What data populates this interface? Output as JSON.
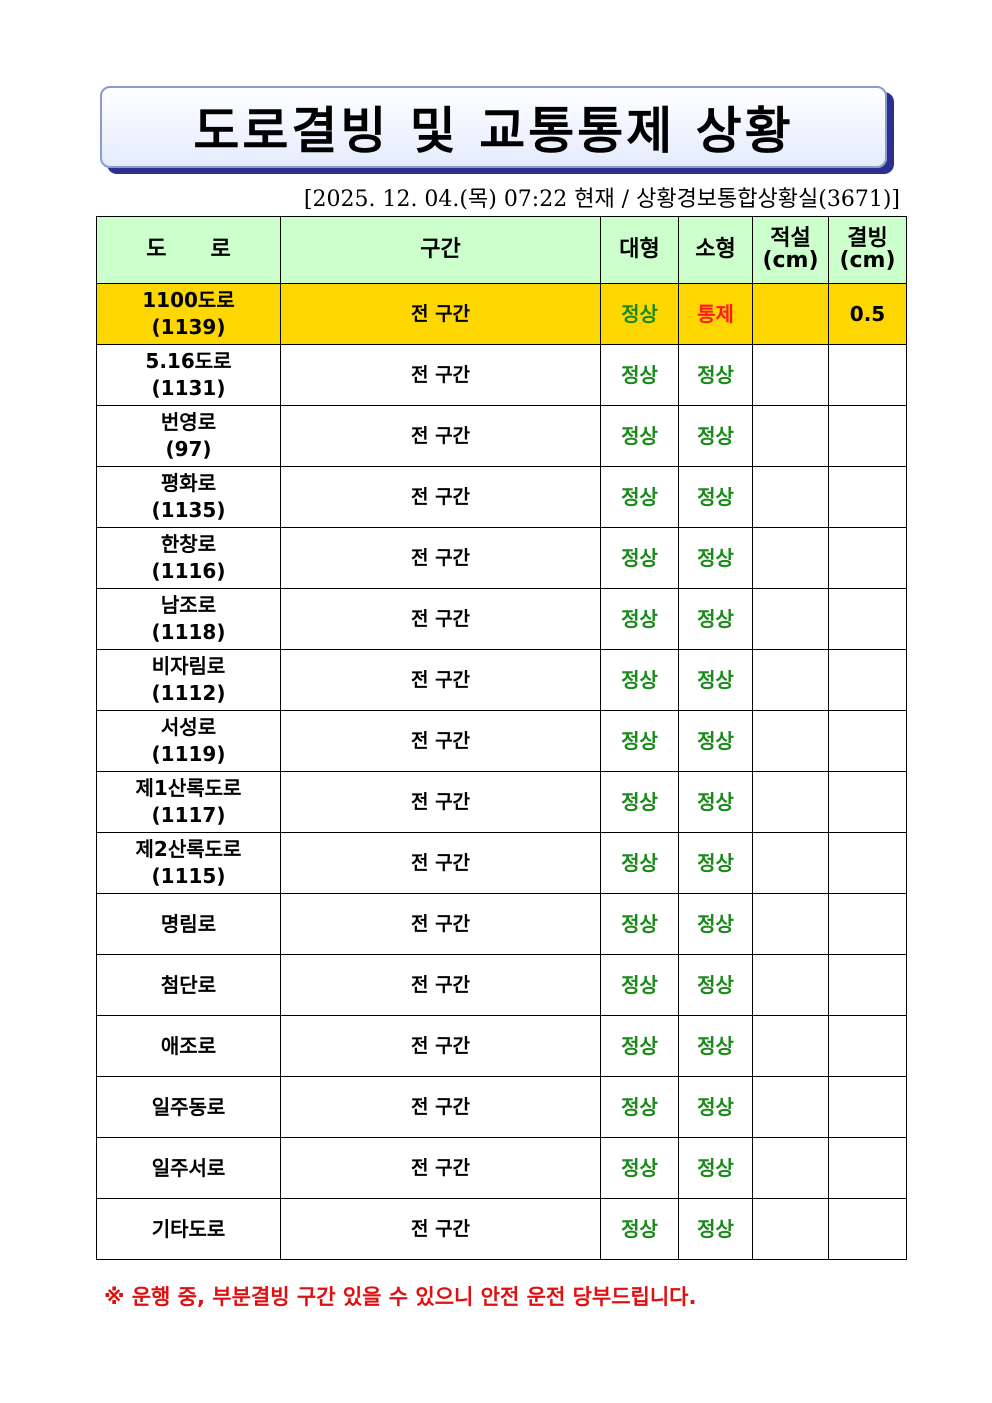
{
  "title": "도로결빙 및 교통통제 상황",
  "subtitle": "[2025. 12. 04.(목) 07:22 현재 / 상황경보통합상황실(3671)]",
  "table": {
    "headers": [
      "도　　로",
      "구간",
      "대형",
      "소형",
      "적설\n(cm)",
      "결빙\n(cm)"
    ],
    "rows": [
      {
        "road": "1100도로",
        "code": "(1139)",
        "section": "전 구간",
        "large": "정상",
        "small": "통제",
        "snow": "",
        "ice": "0.5",
        "highlight": true
      },
      {
        "road": "5.16도로",
        "code": "(1131)",
        "section": "전 구간",
        "large": "정상",
        "small": "정상",
        "snow": "",
        "ice": ""
      },
      {
        "road": "번영로",
        "code": "(97)",
        "section": "전 구간",
        "large": "정상",
        "small": "정상",
        "snow": "",
        "ice": ""
      },
      {
        "road": "평화로",
        "code": "(1135)",
        "section": "전 구간",
        "large": "정상",
        "small": "정상",
        "snow": "",
        "ice": ""
      },
      {
        "road": "한창로",
        "code": "(1116)",
        "section": "전 구간",
        "large": "정상",
        "small": "정상",
        "snow": "",
        "ice": ""
      },
      {
        "road": "남조로",
        "code": "(1118)",
        "section": "전 구간",
        "large": "정상",
        "small": "정상",
        "snow": "",
        "ice": ""
      },
      {
        "road": "비자림로",
        "code": "(1112)",
        "section": "전 구간",
        "large": "정상",
        "small": "정상",
        "snow": "",
        "ice": ""
      },
      {
        "road": "서성로",
        "code": "(1119)",
        "section": "전 구간",
        "large": "정상",
        "small": "정상",
        "snow": "",
        "ice": ""
      },
      {
        "road": "제1산록도로",
        "code": "(1117)",
        "section": "전 구간",
        "large": "정상",
        "small": "정상",
        "snow": "",
        "ice": ""
      },
      {
        "road": "제2산록도로",
        "code": "(1115)",
        "section": "전 구간",
        "large": "정상",
        "small": "정상",
        "snow": "",
        "ice": ""
      },
      {
        "road": "명림로",
        "code": "",
        "section": "전 구간",
        "large": "정상",
        "small": "정상",
        "snow": "",
        "ice": ""
      },
      {
        "road": "첨단로",
        "code": "",
        "section": "전 구간",
        "large": "정상",
        "small": "정상",
        "snow": "",
        "ice": ""
      },
      {
        "road": "애조로",
        "code": "",
        "section": "전 구간",
        "large": "정상",
        "small": "정상",
        "snow": "",
        "ice": ""
      },
      {
        "road": "일주동로",
        "code": "",
        "section": "전 구간",
        "large": "정상",
        "small": "정상",
        "snow": "",
        "ice": ""
      },
      {
        "road": "일주서로",
        "code": "",
        "section": "전 구간",
        "large": "정상",
        "small": "정상",
        "snow": "",
        "ice": ""
      },
      {
        "road": "기타도로",
        "code": "",
        "section": "전 구간",
        "large": "정상",
        "small": "정상",
        "snow": "",
        "ice": ""
      }
    ]
  },
  "note": "※ 운행 중, 부분결빙 구간 있을 수 있으니 안전 운전 당부드립니다.",
  "colors": {
    "header_bg": "#ccffcc",
    "highlight_bg": "#ffd700",
    "normal": "#1a8a1a",
    "control": "#ff1a1a",
    "note": "#e01010"
  }
}
